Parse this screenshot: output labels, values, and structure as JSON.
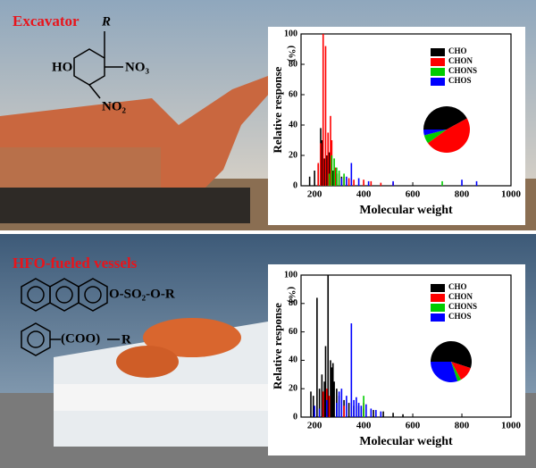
{
  "labels": {
    "top": "Excavator",
    "bottom": "HFO-fueled vessels"
  },
  "structures": {
    "top": {
      "r": "R",
      "ho": "HO",
      "no3": "NO₃",
      "no2": "NO₂"
    },
    "bottom": {
      "sulfonate": "O-SO₂-O-R",
      "ester": "(COO)",
      "r": "R"
    }
  },
  "chart_data": [
    {
      "type": "bar",
      "xlabel": "Molecular weight",
      "ylabel": "Relative response",
      "ylabel_unit": "(%)",
      "xlim": [
        145,
        1000
      ],
      "ylim": [
        0,
        100
      ],
      "xticks": [
        200,
        400,
        600,
        800,
        1000
      ],
      "yticks": [
        0,
        20,
        40,
        60,
        80,
        100
      ],
      "series": [
        {
          "name": "CHO",
          "color": "#000000",
          "x": [
            180,
            200,
            215,
            225,
            230,
            240,
            250,
            260,
            275,
            290,
            310
          ],
          "values": [
            6,
            10,
            14,
            38,
            30,
            18,
            20,
            22,
            10,
            8,
            6
          ]
        },
        {
          "name": "CHON",
          "color": "#ff0000",
          "x": [
            215,
            225,
            235,
            245,
            255,
            265,
            270,
            285,
            300,
            320,
            340,
            360,
            400,
            430,
            470,
            520
          ],
          "values": [
            15,
            28,
            100,
            92,
            35,
            46,
            30,
            12,
            8,
            6,
            5,
            4,
            4,
            3,
            2,
            2
          ]
        },
        {
          "name": "CHONS",
          "color": "#00cc00",
          "x": [
            260,
            270,
            280,
            290,
            300,
            320,
            720
          ],
          "values": [
            8,
            20,
            18,
            12,
            10,
            8,
            3
          ]
        },
        {
          "name": "CHOS",
          "color": "#0000ff",
          "x": [
            310,
            330,
            350,
            380,
            420,
            520,
            800,
            860
          ],
          "values": [
            5,
            6,
            15,
            5,
            3,
            3,
            4,
            3
          ]
        }
      ],
      "inset": {
        "type": "pie",
        "values": [
          42,
          48,
          6,
          4
        ]
      }
    },
    {
      "type": "bar",
      "xlabel": "Molecular weight",
      "ylabel": "Relative response",
      "ylabel_unit": "(%)",
      "xlim": [
        145,
        1000
      ],
      "ylim": [
        0,
        100
      ],
      "xticks": [
        200,
        400,
        600,
        800,
        1000
      ],
      "yticks": [
        0,
        20,
        40,
        60,
        80,
        100
      ],
      "series": [
        {
          "name": "CHO",
          "color": "#000000",
          "x": [
            185,
            195,
            210,
            220,
            230,
            240,
            245,
            255,
            265,
            270,
            275,
            280,
            290,
            300,
            320,
            340,
            360,
            380,
            400,
            440,
            480,
            520,
            560
          ],
          "values": [
            18,
            15,
            84,
            20,
            30,
            25,
            50,
            100,
            40,
            35,
            38,
            25,
            20,
            15,
            12,
            10,
            8,
            8,
            6,
            5,
            4,
            3,
            2
          ]
        },
        {
          "name": "CHON",
          "color": "#ff0000",
          "x": [
            235,
            250,
            260,
            320,
            400
          ],
          "values": [
            18,
            20,
            15,
            8,
            10
          ]
        },
        {
          "name": "CHONS",
          "color": "#00cc00",
          "x": [
            300,
            400
          ],
          "values": [
            10,
            15
          ]
        },
        {
          "name": "CHOS",
          "color": "#0000ff",
          "x": [
            200,
            220,
            250,
            290,
            300,
            310,
            330,
            350,
            360,
            370,
            380,
            390,
            410,
            430,
            450,
            470
          ],
          "values": [
            8,
            6,
            12,
            10,
            18,
            20,
            15,
            66,
            12,
            14,
            10,
            8,
            9,
            6,
            5,
            4
          ]
        }
      ],
      "inset": {
        "type": "pie",
        "values": [
          55,
          12,
          3,
          30
        ]
      }
    }
  ]
}
